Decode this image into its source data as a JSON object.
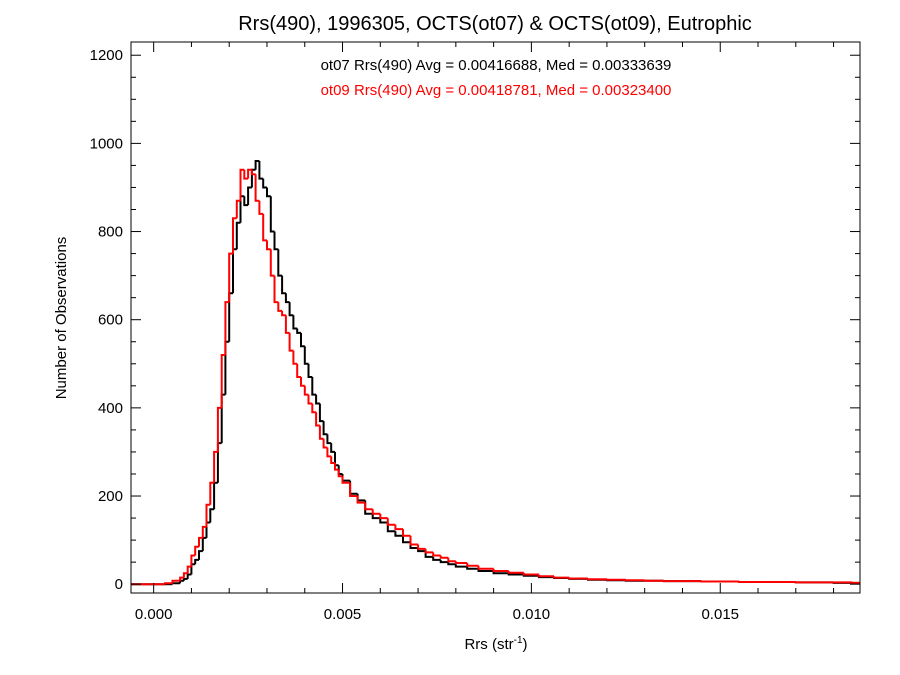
{
  "chart_data": {
    "type": "line",
    "title": "Rrs(490), 1996305, OCTS(ot07) & OCTS(ot09), Eutrophic",
    "xlabel": "Rrs (str",
    "xlabel_sup": "-1",
    "xlabel_end": ")",
    "ylabel": "Number of Observations",
    "xlim": [
      -0.0006,
      0.0187
    ],
    "ylim": [
      -20,
      1230
    ],
    "x_ticks": [
      0.0,
      0.005,
      0.01,
      0.015
    ],
    "x_tick_labels": [
      "0.000",
      "0.005",
      "0.010",
      "0.015"
    ],
    "y_ticks": [
      0,
      200,
      400,
      600,
      800,
      1000,
      1200
    ],
    "y_tick_labels": [
      "0",
      "200",
      "400",
      "600",
      "800",
      "1000",
      "1200"
    ],
    "grid": false,
    "series": [
      {
        "name": "ot07",
        "color": "#000000",
        "stats_label": "ot07 Rrs(490) Avg = 0.00416688, Med = 0.00333639",
        "x": [
          0.0003,
          0.0005,
          0.0007,
          0.0008,
          0.0009,
          0.001,
          0.0011,
          0.0012,
          0.0013,
          0.0014,
          0.0015,
          0.0016,
          0.0017,
          0.0018,
          0.0019,
          0.002,
          0.0021,
          0.0022,
          0.0023,
          0.0024,
          0.0025,
          0.0026,
          0.0027,
          0.0028,
          0.0029,
          0.003,
          0.0031,
          0.0032,
          0.0033,
          0.0034,
          0.0035,
          0.0036,
          0.0037,
          0.0038,
          0.0039,
          0.004,
          0.0041,
          0.0042,
          0.0043,
          0.0044,
          0.0045,
          0.0046,
          0.0047,
          0.0048,
          0.0049,
          0.005,
          0.0052,
          0.0054,
          0.0056,
          0.0058,
          0.006,
          0.0062,
          0.0064,
          0.0066,
          0.0068,
          0.007,
          0.0072,
          0.0074,
          0.0076,
          0.0078,
          0.008,
          0.0083,
          0.0086,
          0.009,
          0.0094,
          0.0098,
          0.0102,
          0.0106,
          0.011,
          0.0115,
          0.012,
          0.0125,
          0.013,
          0.0135,
          0.014,
          0.0145,
          0.015,
          0.0155,
          0.016,
          0.0165,
          0.017,
          0.0175,
          0.018,
          0.0185
        ],
        "values": [
          0,
          2,
          8,
          12,
          22,
          45,
          55,
          75,
          105,
          140,
          170,
          230,
          320,
          430,
          550,
          660,
          760,
          820,
          880,
          860,
          900,
          940,
          960,
          920,
          900,
          880,
          800,
          760,
          700,
          660,
          640,
          610,
          580,
          570,
          540,
          500,
          470,
          430,
          410,
          370,
          340,
          320,
          300,
          270,
          250,
          235,
          205,
          190,
          160,
          150,
          140,
          120,
          110,
          95,
          82,
          75,
          62,
          55,
          50,
          45,
          40,
          35,
          30,
          25,
          22,
          19,
          16,
          14,
          12,
          10,
          9,
          8,
          8,
          7,
          7,
          6,
          6,
          5,
          5,
          5,
          4,
          4,
          3,
          3
        ]
      },
      {
        "name": "ot09",
        "color": "#ff0000",
        "stats_label": "ot09 Rrs(490) Avg = 0.00418781, Med = 0.00323400",
        "x": [
          0.0003,
          0.0005,
          0.0007,
          0.0008,
          0.0009,
          0.001,
          0.0011,
          0.0012,
          0.0013,
          0.0014,
          0.0015,
          0.0016,
          0.0017,
          0.0018,
          0.0019,
          0.002,
          0.0021,
          0.0022,
          0.0023,
          0.0024,
          0.0025,
          0.0026,
          0.0027,
          0.0028,
          0.0029,
          0.003,
          0.0031,
          0.0032,
          0.0033,
          0.0034,
          0.0035,
          0.0036,
          0.0037,
          0.0038,
          0.0039,
          0.004,
          0.0041,
          0.0042,
          0.0043,
          0.0044,
          0.0045,
          0.0046,
          0.0047,
          0.0048,
          0.0049,
          0.005,
          0.0052,
          0.0054,
          0.0056,
          0.0058,
          0.006,
          0.0062,
          0.0064,
          0.0066,
          0.0068,
          0.007,
          0.0072,
          0.0074,
          0.0076,
          0.0078,
          0.008,
          0.0083,
          0.0086,
          0.009,
          0.0094,
          0.0098,
          0.0102,
          0.0106,
          0.011,
          0.0115,
          0.012,
          0.0125,
          0.013,
          0.0135,
          0.014,
          0.0145,
          0.015,
          0.0155,
          0.016,
          0.0165,
          0.017,
          0.0175,
          0.018,
          0.0185
        ],
        "values": [
          2,
          8,
          15,
          25,
          40,
          65,
          85,
          105,
          130,
          180,
          230,
          300,
          400,
          520,
          640,
          750,
          830,
          870,
          940,
          920,
          940,
          930,
          870,
          840,
          780,
          760,
          700,
          640,
          620,
          610,
          570,
          530,
          500,
          470,
          450,
          430,
          410,
          390,
          360,
          330,
          310,
          290,
          275,
          260,
          245,
          230,
          200,
          185,
          170,
          160,
          150,
          135,
          125,
          110,
          90,
          80,
          72,
          65,
          60,
          52,
          48,
          42,
          35,
          30,
          26,
          22,
          18,
          15,
          13,
          11,
          10,
          9,
          8,
          7,
          7,
          6,
          6,
          5,
          5,
          5,
          4,
          4,
          4,
          3
        ]
      }
    ]
  }
}
